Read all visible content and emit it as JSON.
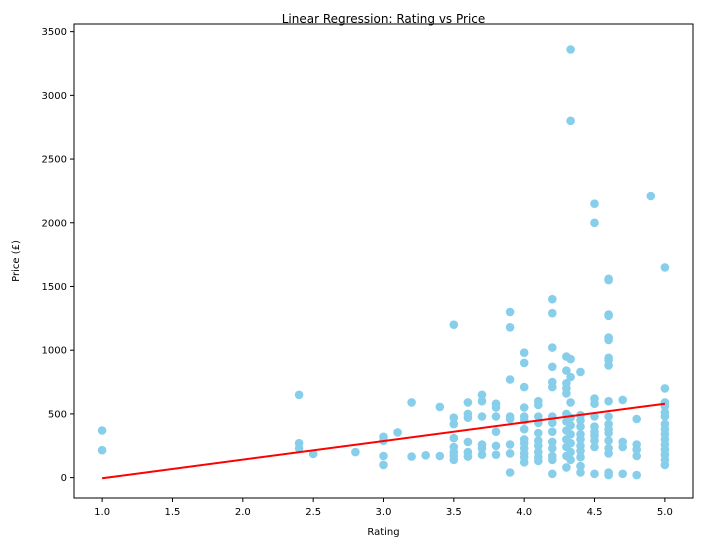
{
  "chart_data": {
    "type": "scatter",
    "title": "Linear Regression: Rating vs Price",
    "xlabel": "Rating",
    "ylabel": "Price (£)",
    "xlim": [
      0.8,
      5.2
    ],
    "ylim": [
      -160,
      3560
    ],
    "x_ticks": [
      1.0,
      1.5,
      2.0,
      2.5,
      3.0,
      3.5,
      4.0,
      4.5,
      5.0
    ],
    "x_tick_labels": [
      "1.0",
      "1.5",
      "2.0",
      "2.5",
      "3.0",
      "3.5",
      "4.0",
      "4.5",
      "5.0"
    ],
    "y_ticks": [
      0,
      500,
      1000,
      1500,
      2000,
      2500,
      3000,
      3500
    ],
    "y_tick_labels": [
      "0",
      "500",
      "1000",
      "1500",
      "2000",
      "2500",
      "3000",
      "3500"
    ],
    "grid": false,
    "legend": null,
    "colors": {
      "points": "#87ceeb",
      "regression_line": "#ff0000",
      "frame": "#000000"
    },
    "series": [
      {
        "kind": "points",
        "points": [
          [
            1.0,
            370
          ],
          [
            1.0,
            215
          ],
          [
            2.4,
            650
          ],
          [
            2.4,
            270
          ],
          [
            2.4,
            230
          ],
          [
            2.5,
            185
          ],
          [
            2.8,
            200
          ],
          [
            3.0,
            320
          ],
          [
            3.0,
            290
          ],
          [
            3.0,
            170
          ],
          [
            3.0,
            100
          ],
          [
            3.1,
            355
          ],
          [
            3.2,
            590
          ],
          [
            3.2,
            165
          ],
          [
            3.3,
            175
          ],
          [
            3.4,
            555
          ],
          [
            3.4,
            170
          ],
          [
            3.5,
            1200
          ],
          [
            3.5,
            470
          ],
          [
            3.5,
            420
          ],
          [
            3.5,
            310
          ],
          [
            3.5,
            240
          ],
          [
            3.5,
            200
          ],
          [
            3.5,
            170
          ],
          [
            3.5,
            140
          ],
          [
            3.6,
            590
          ],
          [
            3.6,
            500
          ],
          [
            3.6,
            470
          ],
          [
            3.6,
            280
          ],
          [
            3.6,
            200
          ],
          [
            3.6,
            165
          ],
          [
            3.7,
            650
          ],
          [
            3.7,
            600
          ],
          [
            3.7,
            480
          ],
          [
            3.7,
            260
          ],
          [
            3.7,
            230
          ],
          [
            3.7,
            180
          ],
          [
            3.8,
            580
          ],
          [
            3.8,
            550
          ],
          [
            3.8,
            480
          ],
          [
            3.8,
            360
          ],
          [
            3.8,
            250
          ],
          [
            3.8,
            180
          ],
          [
            3.9,
            1300
          ],
          [
            3.9,
            1180
          ],
          [
            3.9,
            770
          ],
          [
            3.9,
            480
          ],
          [
            3.9,
            460
          ],
          [
            3.9,
            260
          ],
          [
            3.9,
            190
          ],
          [
            3.9,
            40
          ],
          [
            4.0,
            980
          ],
          [
            4.0,
            900
          ],
          [
            4.0,
            710
          ],
          [
            4.0,
            550
          ],
          [
            4.0,
            480
          ],
          [
            4.0,
            450
          ],
          [
            4.0,
            380
          ],
          [
            4.0,
            300
          ],
          [
            4.0,
            270
          ],
          [
            4.0,
            230
          ],
          [
            4.0,
            190
          ],
          [
            4.0,
            160
          ],
          [
            4.0,
            120
          ],
          [
            4.1,
            600
          ],
          [
            4.1,
            570
          ],
          [
            4.1,
            480
          ],
          [
            4.1,
            430
          ],
          [
            4.1,
            350
          ],
          [
            4.1,
            290
          ],
          [
            4.1,
            250
          ],
          [
            4.1,
            200
          ],
          [
            4.1,
            160
          ],
          [
            4.1,
            130
          ],
          [
            4.2,
            1400
          ],
          [
            4.2,
            1290
          ],
          [
            4.2,
            1020
          ],
          [
            4.2,
            870
          ],
          [
            4.2,
            750
          ],
          [
            4.2,
            710
          ],
          [
            4.2,
            480
          ],
          [
            4.2,
            430
          ],
          [
            4.2,
            360
          ],
          [
            4.2,
            280
          ],
          [
            4.2,
            230
          ],
          [
            4.2,
            170
          ],
          [
            4.2,
            140
          ],
          [
            4.2,
            30
          ],
          [
            4.33,
            3360
          ],
          [
            4.33,
            2800
          ],
          [
            4.3,
            950
          ],
          [
            4.33,
            930
          ],
          [
            4.3,
            840
          ],
          [
            4.33,
            790
          ],
          [
            4.3,
            740
          ],
          [
            4.3,
            700
          ],
          [
            4.3,
            660
          ],
          [
            4.33,
            590
          ],
          [
            4.3,
            500
          ],
          [
            4.33,
            470
          ],
          [
            4.3,
            440
          ],
          [
            4.33,
            410
          ],
          [
            4.3,
            370
          ],
          [
            4.33,
            340
          ],
          [
            4.3,
            300
          ],
          [
            4.33,
            270
          ],
          [
            4.3,
            240
          ],
          [
            4.33,
            200
          ],
          [
            4.3,
            170
          ],
          [
            4.33,
            140
          ],
          [
            4.3,
            80
          ],
          [
            4.4,
            830
          ],
          [
            4.4,
            490
          ],
          [
            4.4,
            450
          ],
          [
            4.4,
            400
          ],
          [
            4.4,
            340
          ],
          [
            4.4,
            300
          ],
          [
            4.4,
            250
          ],
          [
            4.4,
            210
          ],
          [
            4.4,
            160
          ],
          [
            4.4,
            90
          ],
          [
            4.4,
            40
          ],
          [
            4.5,
            2150
          ],
          [
            4.5,
            2000
          ],
          [
            4.5,
            620
          ],
          [
            4.5,
            580
          ],
          [
            4.5,
            480
          ],
          [
            4.5,
            400
          ],
          [
            4.5,
            360
          ],
          [
            4.5,
            330
          ],
          [
            4.5,
            290
          ],
          [
            4.5,
            240
          ],
          [
            4.5,
            30
          ],
          [
            4.6,
            1560
          ],
          [
            4.6,
            1550
          ],
          [
            4.6,
            1280
          ],
          [
            4.6,
            1270
          ],
          [
            4.6,
            1100
          ],
          [
            4.6,
            1080
          ],
          [
            4.6,
            940
          ],
          [
            4.6,
            920
          ],
          [
            4.6,
            880
          ],
          [
            4.6,
            600
          ],
          [
            4.6,
            480
          ],
          [
            4.6,
            420
          ],
          [
            4.6,
            380
          ],
          [
            4.6,
            350
          ],
          [
            4.6,
            290
          ],
          [
            4.6,
            230
          ],
          [
            4.6,
            190
          ],
          [
            4.6,
            40
          ],
          [
            4.6,
            20
          ],
          [
            4.7,
            610
          ],
          [
            4.7,
            280
          ],
          [
            4.7,
            240
          ],
          [
            4.7,
            30
          ],
          [
            4.8,
            460
          ],
          [
            4.8,
            260
          ],
          [
            4.8,
            220
          ],
          [
            4.8,
            170
          ],
          [
            4.8,
            20
          ],
          [
            4.9,
            2210
          ],
          [
            5.0,
            1650
          ],
          [
            5.0,
            700
          ],
          [
            5.0,
            590
          ],
          [
            5.0,
            560
          ],
          [
            5.0,
            510
          ],
          [
            5.0,
            480
          ],
          [
            5.0,
            420
          ],
          [
            5.0,
            380
          ],
          [
            5.0,
            340
          ],
          [
            5.0,
            300
          ],
          [
            5.0,
            260
          ],
          [
            5.0,
            220
          ],
          [
            5.0,
            180
          ],
          [
            5.0,
            140
          ],
          [
            5.0,
            100
          ]
        ]
      },
      {
        "kind": "line",
        "points": [
          [
            1.0,
            -5
          ],
          [
            5.0,
            580
          ]
        ]
      }
    ]
  }
}
